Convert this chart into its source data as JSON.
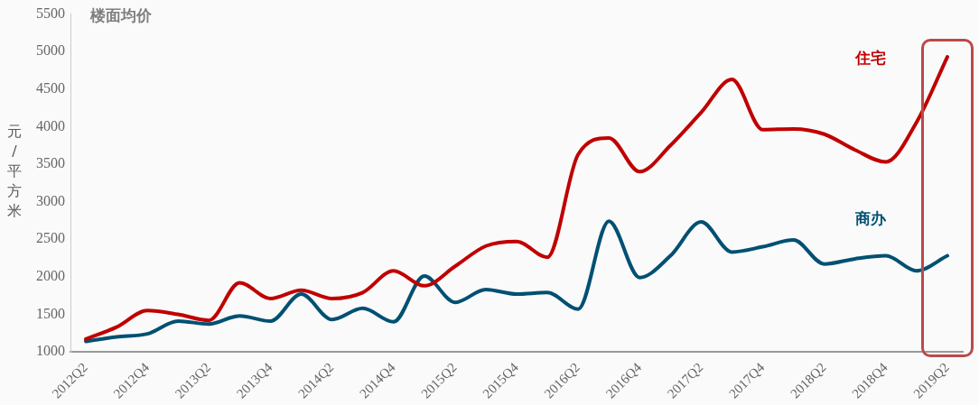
{
  "chart_data": {
    "type": "line",
    "title": "楼面均价",
    "ylabel": "元/平方米",
    "categories": [
      "2012Q2",
      null,
      "2012Q4",
      null,
      "2013Q2",
      null,
      "2013Q4",
      null,
      "2014Q2",
      null,
      "2014Q4",
      null,
      "2015Q2",
      null,
      "2015Q4",
      null,
      "2016Q2",
      null,
      "2016Q4",
      null,
      "2017Q2",
      null,
      "2017Q4",
      null,
      "2018Q2",
      null,
      "2018Q4",
      null,
      "2019Q2"
    ],
    "series": [
      {
        "name": "住宅",
        "color": "#c00000",
        "values": [
          1170,
          1330,
          1550,
          1500,
          1420,
          1920,
          1710,
          1820,
          1710,
          1790,
          2080,
          1880,
          2140,
          2410,
          2470,
          2260,
          3630,
          3850,
          3400,
          3750,
          4190,
          4630,
          3960,
          3970,
          3900,
          3690,
          3530,
          4060,
          4930
        ]
      },
      {
        "name": "商办",
        "color": "#005072",
        "values": [
          1140,
          1200,
          1240,
          1410,
          1370,
          1480,
          1410,
          1770,
          1430,
          1580,
          1400,
          2010,
          1660,
          1830,
          1770,
          1790,
          1570,
          2740,
          1990,
          2280,
          2730,
          2330,
          2400,
          2490,
          2170,
          2240,
          2280,
          2080,
          2280
        ]
      }
    ],
    "ylim": [
      1000,
      5500
    ],
    "yticks": [
      1000,
      1500,
      2000,
      2500,
      3000,
      3500,
      4000,
      4500,
      5000,
      5500
    ],
    "grid": false,
    "legend": false,
    "marker": "none",
    "line_style": "solid"
  }
}
